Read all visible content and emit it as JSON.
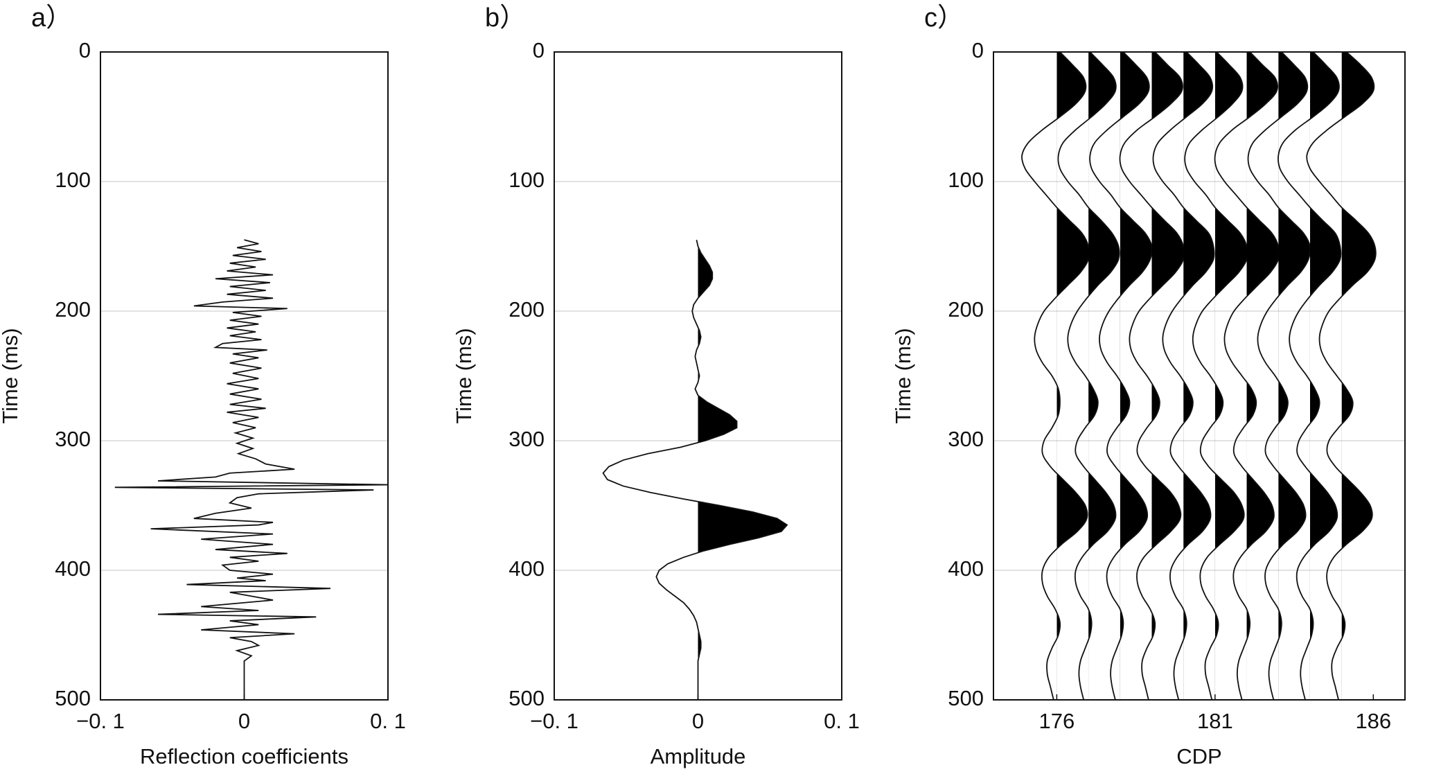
{
  "chart_data": [
    {
      "type": "line",
      "label": "a）",
      "xlabel": "Reflection coefficients",
      "ylabel": "Time (ms)",
      "xlim": [
        -0.1,
        0.1
      ],
      "xticks": [
        {
          "value": -0.1,
          "label": "−0. 1"
        },
        0,
        {
          "value": 0.1,
          "label": "0. 1"
        }
      ],
      "ylim": [
        0,
        500
      ],
      "yticks": [
        0,
        100,
        200,
        300,
        400,
        500
      ],
      "y_inverted": true,
      "grid": true,
      "color": "#111111",
      "y": [
        145,
        148,
        151,
        154,
        157,
        160,
        163,
        166,
        169,
        172,
        175,
        178,
        181,
        184,
        187,
        190,
        193,
        196,
        198,
        201,
        204,
        207,
        210,
        213,
        216,
        219,
        222,
        225,
        228,
        230,
        233,
        236,
        240,
        244,
        248,
        252,
        256,
        260,
        264,
        268,
        272,
        275,
        278,
        282,
        286,
        290,
        294,
        298,
        302,
        306,
        310,
        314,
        318,
        322,
        325,
        328,
        331,
        334,
        336,
        338,
        341,
        344,
        348,
        352,
        356,
        360,
        363,
        365,
        368,
        372,
        376,
        380,
        384,
        387,
        390,
        393,
        396,
        400,
        403,
        406,
        408,
        411,
        414,
        417,
        420,
        423,
        426,
        428,
        431,
        434,
        436,
        439,
        442,
        446,
        449,
        452,
        455,
        458,
        462,
        466,
        470,
        500
      ],
      "x": [
        0.0,
        0.01,
        -0.005,
        0.012,
        -0.008,
        0.015,
        -0.01,
        0.008,
        -0.012,
        0.02,
        -0.02,
        0.018,
        -0.01,
        0.015,
        -0.012,
        0.02,
        -0.015,
        -0.035,
        0.03,
        -0.008,
        0.012,
        -0.01,
        0.01,
        -0.012,
        0.008,
        -0.01,
        0.012,
        -0.015,
        -0.02,
        0.016,
        -0.008,
        0.01,
        -0.01,
        0.012,
        -0.008,
        0.01,
        -0.012,
        0.01,
        -0.01,
        0.012,
        -0.01,
        0.015,
        -0.012,
        0.01,
        -0.008,
        0.008,
        -0.006,
        0.006,
        -0.005,
        0.006,
        -0.004,
        0.008,
        0.015,
        0.035,
        -0.01,
        -0.02,
        -0.06,
        0.1,
        -0.09,
        0.09,
        0.01,
        -0.005,
        -0.01,
        0.005,
        -0.02,
        -0.035,
        0.02,
        0.01,
        -0.065,
        0.02,
        -0.03,
        0.02,
        -0.02,
        0.03,
        -0.01,
        0.01,
        -0.015,
        -0.01,
        0.02,
        -0.005,
        0.015,
        -0.04,
        0.06,
        -0.01,
        0.005,
        0.02,
        -0.01,
        -0.03,
        0.01,
        -0.06,
        0.05,
        -0.01,
        0.01,
        -0.03,
        0.035,
        -0.01,
        0.005,
        0.01,
        -0.005,
        0.005,
        0.0,
        0.0
      ]
    },
    {
      "type": "line",
      "label": "b）",
      "xlabel": "Amplitude",
      "ylabel": "Time (ms)",
      "xlim": [
        -0.1,
        0.1
      ],
      "xticks": [
        {
          "value": -0.1,
          "label": "−0. 1"
        },
        0,
        {
          "value": 0.1,
          "label": "0. 1"
        }
      ],
      "ylim": [
        0,
        500
      ],
      "yticks": [
        0,
        100,
        200,
        300,
        400,
        500
      ],
      "y_inverted": true,
      "grid": true,
      "color": "#111111",
      "fill": "positive",
      "fill_color": "#000000",
      "y": [
        145,
        150,
        155,
        160,
        165,
        170,
        175,
        180,
        185,
        190,
        195,
        200,
        205,
        210,
        215,
        220,
        225,
        230,
        235,
        240,
        245,
        250,
        255,
        260,
        265,
        270,
        275,
        280,
        285,
        290,
        295,
        300,
        305,
        310,
        315,
        320,
        325,
        330,
        335,
        340,
        345,
        350,
        355,
        360,
        365,
        370,
        375,
        380,
        385,
        390,
        395,
        400,
        405,
        410,
        415,
        420,
        425,
        430,
        435,
        440,
        445,
        450,
        455,
        460,
        465,
        470,
        475,
        480,
        485,
        490,
        495,
        500
      ],
      "x": [
        -0.001,
        0.0,
        0.002,
        0.005,
        0.008,
        0.01,
        0.01,
        0.008,
        0.004,
        0.0,
        -0.003,
        -0.004,
        -0.003,
        -0.001,
        0.001,
        0.002,
        0.001,
        -0.001,
        -0.002,
        -0.001,
        0.0,
        0.001,
        0.0,
        -0.002,
        0.0,
        0.006,
        0.014,
        0.022,
        0.027,
        0.027,
        0.018,
        0.005,
        -0.012,
        -0.035,
        -0.052,
        -0.062,
        -0.066,
        -0.063,
        -0.052,
        -0.033,
        -0.01,
        0.015,
        0.038,
        0.055,
        0.062,
        0.058,
        0.042,
        0.022,
        0.004,
        -0.01,
        -0.021,
        -0.027,
        -0.029,
        -0.027,
        -0.022,
        -0.016,
        -0.01,
        -0.006,
        -0.003,
        -0.001,
        0.0,
        0.001,
        0.002,
        0.002,
        0.001,
        0.0,
        0.0,
        0.0,
        0.0,
        0.0,
        0.0,
        0.0
      ]
    },
    {
      "type": "wiggle",
      "label": "c）",
      "xlabel": "CDP",
      "ylabel": "Time (ms)",
      "xlim": [
        174,
        187
      ],
      "xticks": [
        176,
        181,
        186
      ],
      "ylim": [
        0,
        500
      ],
      "yticks": [
        0,
        100,
        200,
        300,
        400,
        500
      ],
      "y_inverted": true,
      "grid": true,
      "color": "#111111",
      "fill": "positive",
      "fill_color": "#000000",
      "y": [
        0,
        10,
        20,
        30,
        40,
        50,
        60,
        70,
        80,
        90,
        100,
        110,
        120,
        130,
        140,
        150,
        160,
        170,
        180,
        190,
        200,
        210,
        220,
        230,
        240,
        250,
        260,
        270,
        280,
        290,
        300,
        310,
        320,
        330,
        340,
        350,
        360,
        370,
        380,
        390,
        400,
        410,
        420,
        430,
        440,
        450,
        460,
        470,
        480,
        490,
        500
      ],
      "series": [
        {
          "offset": 176,
          "values": [
            0.1,
            0.5,
            0.85,
            0.9,
            0.6,
            0.1,
            -0.45,
            -0.9,
            -1.1,
            -1.0,
            -0.7,
            -0.35,
            0.0,
            0.4,
            0.8,
            1.0,
            1.0,
            0.75,
            0.35,
            -0.05,
            -0.4,
            -0.6,
            -0.7,
            -0.65,
            -0.45,
            -0.15,
            0.05,
            0.1,
            0.05,
            -0.15,
            -0.4,
            -0.45,
            -0.2,
            0.2,
            0.6,
            0.9,
            0.95,
            0.65,
            0.15,
            -0.25,
            -0.45,
            -0.45,
            -0.3,
            -0.05,
            0.1,
            0.05,
            -0.15,
            -0.3,
            -0.3,
            -0.2,
            -0.1
          ]
        },
        {
          "offset": 177,
          "values": [
            0.05,
            0.45,
            0.8,
            0.85,
            0.55,
            0.1,
            -0.4,
            -0.8,
            -0.95,
            -0.9,
            -0.65,
            -0.3,
            0.0,
            0.4,
            0.75,
            0.95,
            0.95,
            0.7,
            0.3,
            -0.05,
            -0.35,
            -0.55,
            -0.65,
            -0.6,
            -0.4,
            -0.1,
            0.15,
            0.3,
            0.2,
            -0.1,
            -0.35,
            -0.4,
            -0.15,
            0.2,
            0.55,
            0.8,
            0.85,
            0.6,
            0.15,
            -0.2,
            -0.4,
            -0.4,
            -0.25,
            0.0,
            0.1,
            0.05,
            -0.1,
            -0.25,
            -0.3,
            -0.25,
            -0.15
          ]
        },
        {
          "offset": 178,
          "values": [
            0.1,
            0.5,
            0.85,
            0.9,
            0.6,
            0.1,
            -0.4,
            -0.8,
            -0.95,
            -0.9,
            -0.65,
            -0.3,
            0.0,
            0.4,
            0.8,
            1.0,
            0.95,
            0.7,
            0.3,
            -0.05,
            -0.35,
            -0.55,
            -0.65,
            -0.6,
            -0.4,
            -0.1,
            0.15,
            0.3,
            0.2,
            -0.1,
            -0.35,
            -0.4,
            -0.15,
            0.2,
            0.55,
            0.8,
            0.85,
            0.6,
            0.15,
            -0.2,
            -0.4,
            -0.4,
            -0.25,
            0.0,
            0.1,
            0.05,
            -0.1,
            -0.25,
            -0.3,
            -0.25,
            -0.15
          ]
        },
        {
          "offset": 179,
          "values": [
            0.1,
            0.5,
            0.9,
            0.95,
            0.6,
            0.1,
            -0.45,
            -0.85,
            -1.0,
            -0.95,
            -0.7,
            -0.35,
            0.0,
            0.4,
            0.8,
            1.0,
            1.0,
            0.75,
            0.35,
            -0.05,
            -0.4,
            -0.6,
            -0.7,
            -0.65,
            -0.45,
            -0.15,
            0.1,
            0.25,
            0.15,
            -0.15,
            -0.4,
            -0.45,
            -0.2,
            0.2,
            0.6,
            0.85,
            0.9,
            0.6,
            0.15,
            -0.25,
            -0.45,
            -0.45,
            -0.3,
            -0.05,
            0.1,
            0.05,
            -0.15,
            -0.3,
            -0.3,
            -0.2,
            -0.1
          ]
        },
        {
          "offset": 180,
          "values": [
            0.1,
            0.5,
            0.85,
            0.9,
            0.6,
            0.1,
            -0.4,
            -0.8,
            -0.95,
            -0.9,
            -0.65,
            -0.3,
            0.0,
            0.4,
            0.8,
            0.95,
            0.95,
            0.7,
            0.3,
            -0.05,
            -0.35,
            -0.55,
            -0.65,
            -0.6,
            -0.4,
            -0.1,
            0.15,
            0.3,
            0.2,
            -0.1,
            -0.35,
            -0.4,
            -0.15,
            0.2,
            0.55,
            0.8,
            0.85,
            0.6,
            0.15,
            -0.2,
            -0.4,
            -0.4,
            -0.25,
            0.0,
            0.1,
            0.05,
            -0.1,
            -0.25,
            -0.3,
            -0.25,
            -0.15
          ]
        },
        {
          "offset": 181,
          "values": [
            0.05,
            0.45,
            0.8,
            0.85,
            0.55,
            0.1,
            -0.4,
            -0.8,
            -0.95,
            -0.9,
            -0.65,
            -0.3,
            0.0,
            0.4,
            0.8,
            1.0,
            1.0,
            0.75,
            0.35,
            -0.05,
            -0.4,
            -0.6,
            -0.7,
            -0.65,
            -0.45,
            -0.15,
            0.1,
            0.25,
            0.15,
            -0.15,
            -0.4,
            -0.45,
            -0.2,
            0.2,
            0.6,
            0.85,
            0.9,
            0.6,
            0.15,
            -0.25,
            -0.45,
            -0.45,
            -0.3,
            -0.05,
            0.1,
            0.05,
            -0.15,
            -0.3,
            -0.3,
            -0.2,
            -0.1
          ]
        },
        {
          "offset": 182,
          "values": [
            0.1,
            0.5,
            0.9,
            0.95,
            0.6,
            0.1,
            -0.45,
            -0.85,
            -1.0,
            -0.95,
            -0.7,
            -0.35,
            0.0,
            0.4,
            0.8,
            1.0,
            1.0,
            0.75,
            0.35,
            -0.05,
            -0.4,
            -0.6,
            -0.7,
            -0.65,
            -0.45,
            -0.15,
            0.15,
            0.3,
            0.2,
            -0.1,
            -0.35,
            -0.4,
            -0.15,
            0.2,
            0.55,
            0.8,
            0.85,
            0.6,
            0.15,
            -0.2,
            -0.4,
            -0.4,
            -0.25,
            0.0,
            0.1,
            0.05,
            -0.1,
            -0.25,
            -0.3,
            -0.25,
            -0.15
          ]
        },
        {
          "offset": 183,
          "values": [
            0.1,
            0.5,
            0.85,
            0.9,
            0.6,
            0.1,
            -0.4,
            -0.8,
            -0.95,
            -0.9,
            -0.65,
            -0.3,
            0.0,
            0.4,
            0.8,
            1.0,
            0.95,
            0.7,
            0.3,
            -0.05,
            -0.35,
            -0.55,
            -0.65,
            -0.6,
            -0.4,
            -0.1,
            0.15,
            0.3,
            0.2,
            -0.1,
            -0.35,
            -0.4,
            -0.15,
            0.2,
            0.55,
            0.8,
            0.85,
            0.6,
            0.15,
            -0.2,
            -0.4,
            -0.4,
            -0.25,
            0.0,
            0.1,
            0.05,
            -0.1,
            -0.25,
            -0.3,
            -0.25,
            -0.15
          ]
        },
        {
          "offset": 184,
          "values": [
            0.1,
            0.5,
            0.85,
            0.9,
            0.6,
            0.1,
            -0.45,
            -0.85,
            -1.0,
            -0.95,
            -0.7,
            -0.35,
            0.0,
            0.4,
            0.8,
            0.95,
            0.95,
            0.7,
            0.3,
            -0.05,
            -0.35,
            -0.55,
            -0.65,
            -0.6,
            -0.4,
            -0.1,
            0.15,
            0.3,
            0.2,
            -0.1,
            -0.35,
            -0.4,
            -0.15,
            0.2,
            0.55,
            0.8,
            0.85,
            0.6,
            0.15,
            -0.2,
            -0.4,
            -0.4,
            -0.25,
            0.0,
            0.1,
            0.05,
            -0.1,
            -0.25,
            -0.3,
            -0.25,
            -0.15
          ]
        },
        {
          "offset": 185,
          "values": [
            0.15,
            0.6,
            0.95,
            1.0,
            0.65,
            0.1,
            -0.45,
            -0.9,
            -1.1,
            -1.0,
            -0.7,
            -0.35,
            0.0,
            0.45,
            0.85,
            1.05,
            1.05,
            0.8,
            0.35,
            -0.05,
            -0.4,
            -0.6,
            -0.7,
            -0.65,
            -0.45,
            -0.15,
            0.15,
            0.35,
            0.25,
            -0.1,
            -0.4,
            -0.45,
            -0.2,
            0.2,
            0.6,
            0.9,
            0.95,
            0.65,
            0.15,
            -0.25,
            -0.45,
            -0.45,
            -0.3,
            -0.05,
            0.1,
            0.05,
            -0.15,
            -0.3,
            -0.3,
            -0.2,
            -0.1
          ]
        }
      ]
    }
  ]
}
